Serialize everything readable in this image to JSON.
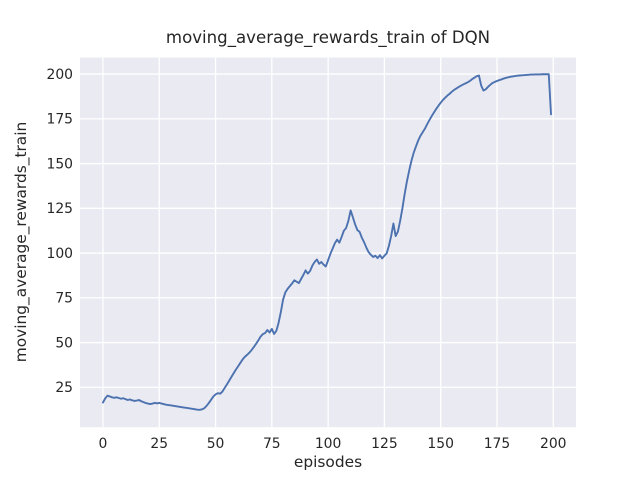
{
  "chart_data": {
    "type": "line",
    "title": "moving_average_rewards_train of DQN",
    "xlabel": "episodes",
    "ylabel": "moving_average_rewards_train",
    "xlim": [
      -10.2,
      210.1
    ],
    "ylim": [
      2.7,
      209.2
    ],
    "xticks": [
      0,
      25,
      50,
      75,
      100,
      125,
      150,
      175,
      200
    ],
    "yticks": [
      25,
      50,
      75,
      100,
      125,
      150,
      175,
      200
    ],
    "grid": true,
    "legend": false,
    "colors": {
      "figure_bg": "#FFFFFF",
      "axes_bg": "#EAEAF2",
      "grid": "#FFFFFF",
      "line": "#4C72B0",
      "text": "#262626"
    },
    "series": [
      {
        "name": "moving_average_rewards_train",
        "x_start": 0,
        "x_step": 1,
        "y": [
          16.5,
          18.8,
          20.3,
          19.9,
          19.4,
          19.1,
          19.4,
          19.0,
          18.6,
          18.9,
          18.4,
          17.9,
          18.2,
          17.7,
          17.4,
          17.6,
          17.9,
          17.2,
          16.7,
          16.2,
          15.9,
          15.6,
          15.9,
          16.3,
          16.0,
          16.3,
          15.9,
          15.6,
          15.3,
          15.1,
          14.9,
          14.7,
          14.5,
          14.3,
          14.1,
          13.9,
          13.7,
          13.5,
          13.3,
          13.1,
          12.9,
          12.7,
          12.5,
          12.4,
          12.7,
          13.3,
          14.6,
          16.2,
          18.0,
          19.8,
          21.0,
          21.7,
          21.4,
          22.5,
          24.5,
          26.5,
          28.6,
          30.7,
          32.8,
          34.8,
          36.7,
          38.6,
          40.5,
          42.0,
          43.1,
          44.3,
          45.8,
          47.5,
          49.3,
          51.2,
          53.3,
          54.7,
          55.3,
          57.0,
          55.6,
          57.6,
          54.8,
          56.5,
          61.0,
          67.0,
          74.0,
          78.0,
          80.0,
          81.5,
          83.0,
          84.8,
          84.0,
          83.2,
          85.5,
          87.8,
          90.3,
          88.5,
          90.0,
          93.0,
          95.0,
          96.4,
          94.0,
          95.0,
          93.5,
          92.5,
          96.0,
          99.5,
          102.5,
          105.5,
          107.5,
          105.8,
          109.0,
          112.5,
          114.0,
          118.0,
          123.8,
          120.0,
          116.0,
          112.8,
          111.8,
          108.5,
          106.0,
          103.0,
          100.5,
          99.0,
          97.8,
          98.5,
          97.2,
          98.8,
          97.0,
          98.5,
          99.8,
          104.0,
          109.5,
          116.5,
          109.5,
          112.0,
          118.0,
          125.0,
          133.0,
          140.0,
          146.0,
          151.5,
          156.0,
          159.5,
          162.8,
          165.5,
          167.5,
          169.5,
          172.0,
          174.3,
          176.5,
          178.5,
          180.5,
          182.3,
          184.0,
          185.5,
          186.8,
          188.0,
          189.0,
          190.2,
          191.2,
          192.0,
          192.8,
          193.5,
          194.2,
          194.8,
          195.4,
          196.2,
          197.2,
          198.0,
          198.8,
          199.2,
          193.5,
          190.8,
          191.5,
          192.8,
          194.0,
          195.0,
          195.6,
          196.1,
          196.6,
          197.0,
          197.5,
          197.9,
          198.2,
          198.5,
          198.7,
          198.9,
          199.1,
          199.2,
          199.3,
          199.4,
          199.5,
          199.6,
          199.7,
          199.7,
          199.8,
          199.8,
          199.8,
          199.9,
          199.9,
          199.9,
          199.9,
          177.5
        ]
      }
    ]
  }
}
